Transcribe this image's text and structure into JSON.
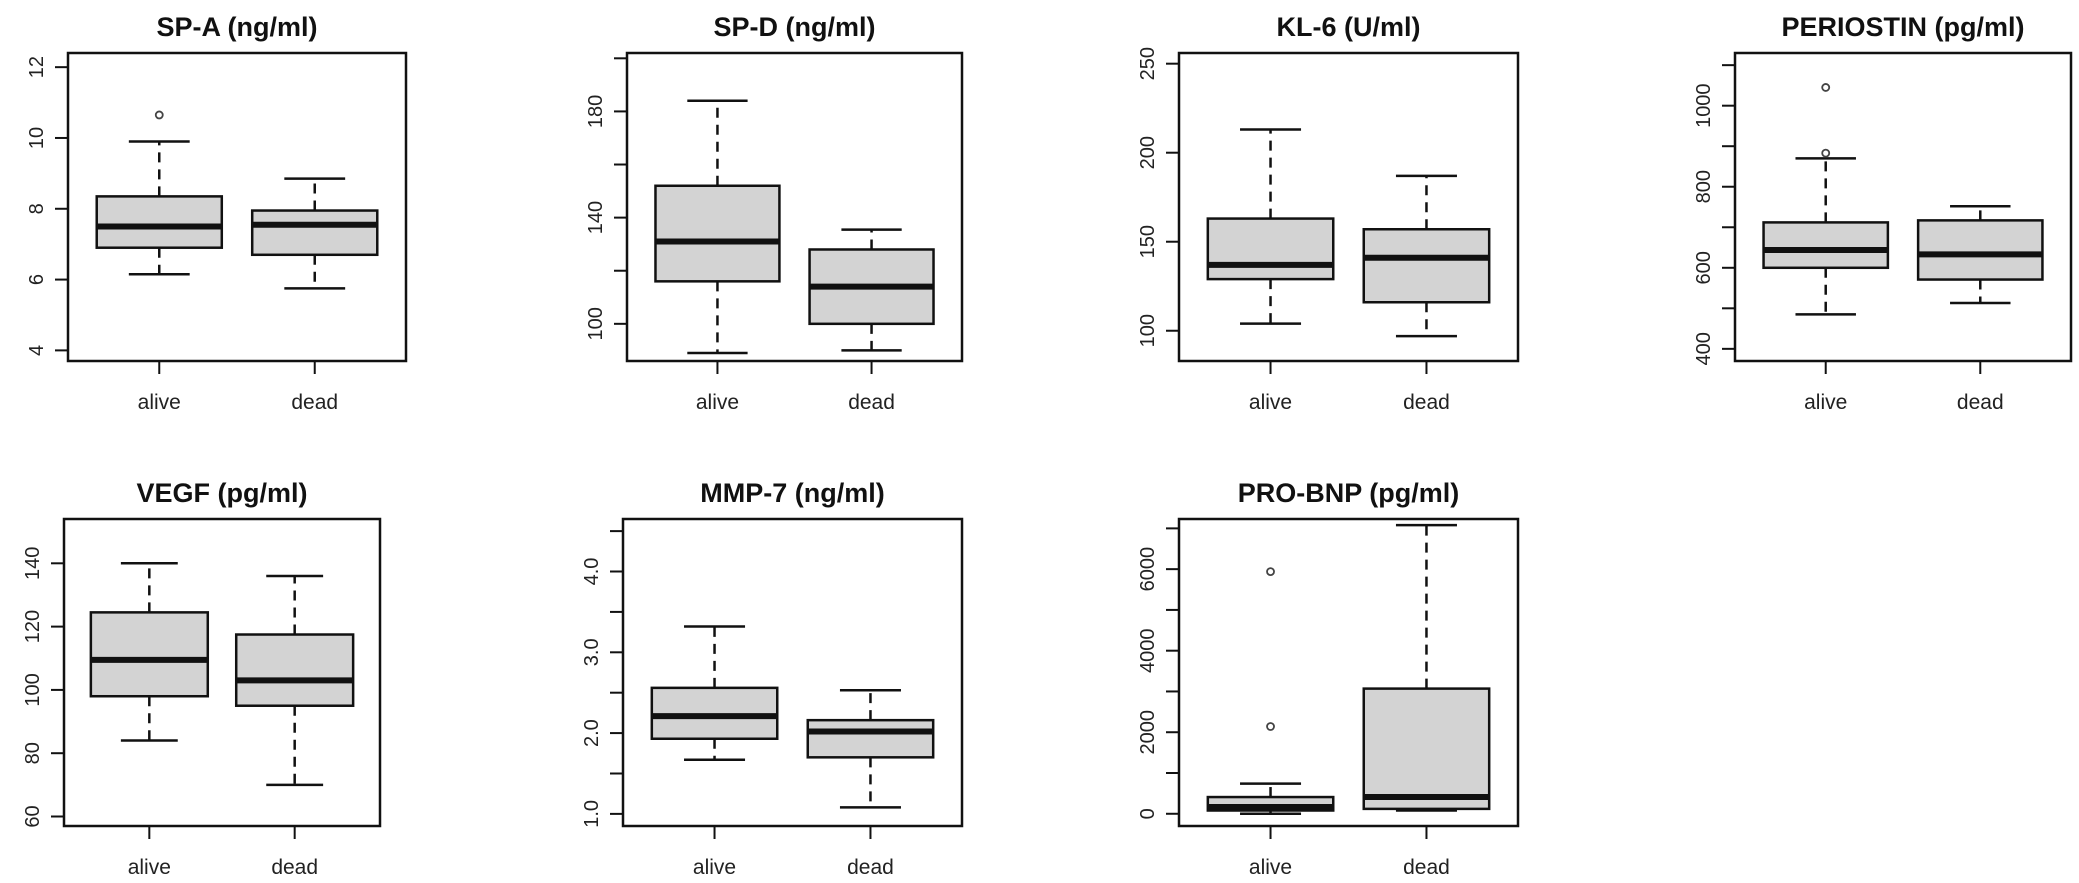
{
  "chart_data": [
    {
      "type": "boxplot",
      "title": "SP-A (ng/ml)",
      "categories": [
        "alive",
        "dead"
      ],
      "ylim": [
        3.7,
        12.4
      ],
      "yticks": [
        4,
        6,
        8,
        10,
        12
      ],
      "ytick_labels": [
        "4",
        "6",
        "8",
        "10",
        "12"
      ],
      "series": [
        {
          "name": "alive",
          "whisker_low": 6.15,
          "q1": 6.9,
          "median": 7.5,
          "q3": 8.35,
          "whisker_high": 9.9,
          "outliers": [
            10.65
          ]
        },
        {
          "name": "dead",
          "whisker_low": 5.75,
          "q1": 6.7,
          "median": 7.55,
          "q3": 7.95,
          "whisker_high": 8.85,
          "outliers": []
        }
      ]
    },
    {
      "type": "boxplot",
      "title": "SP-D (ng/ml)",
      "categories": [
        "alive",
        "dead"
      ],
      "ylim": [
        86,
        202
      ],
      "yticks": [
        100,
        120,
        140,
        160,
        180,
        200
      ],
      "ytick_labels": [
        "100",
        "",
        "140",
        "",
        "180",
        ""
      ],
      "series": [
        {
          "name": "alive",
          "whisker_low": 89,
          "q1": 116,
          "median": 131,
          "q3": 152,
          "whisker_high": 184,
          "outliers": []
        },
        {
          "name": "dead",
          "whisker_low": 90,
          "q1": 100,
          "median": 114,
          "q3": 128,
          "whisker_high": 135.5,
          "outliers": []
        }
      ]
    },
    {
      "type": "boxplot",
      "title": "KL-6 (U/ml)",
      "categories": [
        "alive",
        "dead"
      ],
      "ylim": [
        83,
        256
      ],
      "yticks": [
        100,
        150,
        200,
        250
      ],
      "ytick_labels": [
        "100",
        "150",
        "200",
        "250"
      ],
      "series": [
        {
          "name": "alive",
          "whisker_low": 104,
          "q1": 129,
          "median": 137,
          "q3": 163,
          "whisker_high": 213,
          "outliers": []
        },
        {
          "name": "dead",
          "whisker_low": 97,
          "q1": 116,
          "median": 141,
          "q3": 157,
          "whisker_high": 187,
          "outliers": []
        }
      ]
    },
    {
      "type": "boxplot",
      "title": "PERIOSTIN (pg/ml)",
      "categories": [
        "alive",
        "dead"
      ],
      "ylim": [
        370,
        1130
      ],
      "yticks": [
        400,
        500,
        600,
        700,
        800,
        900,
        1000,
        1100
      ],
      "ytick_labels": [
        "400",
        "",
        "600",
        "",
        "800",
        "",
        "1000",
        ""
      ],
      "series": [
        {
          "name": "alive",
          "whisker_low": 485,
          "q1": 600,
          "median": 644,
          "q3": 712,
          "whisker_high": 870,
          "outliers": [
            883,
            1045
          ]
        },
        {
          "name": "dead",
          "whisker_low": 513,
          "q1": 571,
          "median": 633,
          "q3": 717,
          "whisker_high": 752,
          "outliers": []
        }
      ]
    },
    {
      "type": "boxplot",
      "title": "VEGF (pg/ml)",
      "categories": [
        "alive",
        "dead"
      ],
      "ylim": [
        57,
        154
      ],
      "yticks": [
        60,
        80,
        100,
        120,
        140
      ],
      "ytick_labels": [
        "60",
        "80",
        "100",
        "120",
        "140"
      ],
      "series": [
        {
          "name": "alive",
          "whisker_low": 84,
          "q1": 98,
          "median": 109.5,
          "q3": 124.5,
          "whisker_high": 140,
          "outliers": []
        },
        {
          "name": "dead",
          "whisker_low": 70,
          "q1": 95,
          "median": 103,
          "q3": 117.5,
          "whisker_high": 136,
          "outliers": []
        }
      ]
    },
    {
      "type": "boxplot",
      "title": "MMP-7 (ng/ml)",
      "categories": [
        "alive",
        "dead"
      ],
      "ylim": [
        0.85,
        4.65
      ],
      "yticks": [
        1.0,
        1.5,
        2.0,
        2.5,
        3.0,
        3.5,
        4.0,
        4.5
      ],
      "ytick_labels": [
        "1.0",
        "",
        "2.0",
        "",
        "3.0",
        "",
        "4.0",
        ""
      ],
      "series": [
        {
          "name": "alive",
          "whisker_low": 1.67,
          "q1": 1.93,
          "median": 2.21,
          "q3": 2.56,
          "whisker_high": 3.32,
          "outliers": []
        },
        {
          "name": "dead",
          "whisker_low": 1.08,
          "q1": 1.7,
          "median": 2.02,
          "q3": 2.16,
          "whisker_high": 2.53,
          "outliers": []
        }
      ]
    },
    {
      "type": "boxplot",
      "title": "PRO-BNP (pg/ml)",
      "categories": [
        "alive",
        "dead"
      ],
      "ylim": [
        -300,
        7230
      ],
      "yticks": [
        0,
        1000,
        2000,
        3000,
        4000,
        5000,
        6000,
        7000
      ],
      "ytick_labels": [
        "0",
        "",
        "2000",
        "",
        "4000",
        "",
        "6000",
        ""
      ],
      "series": [
        {
          "name": "alive",
          "whisker_low": 0,
          "q1": 80,
          "median": 165,
          "q3": 410,
          "whisker_high": 740,
          "outliers": [
            2140,
            5940
          ]
        },
        {
          "name": "dead",
          "whisker_low": 80,
          "q1": 120,
          "median": 410,
          "q3": 3070,
          "whisker_high": 7080,
          "outliers": []
        }
      ]
    }
  ],
  "colors": {
    "box_fill": "#d3d3d3",
    "line": "#111111"
  }
}
